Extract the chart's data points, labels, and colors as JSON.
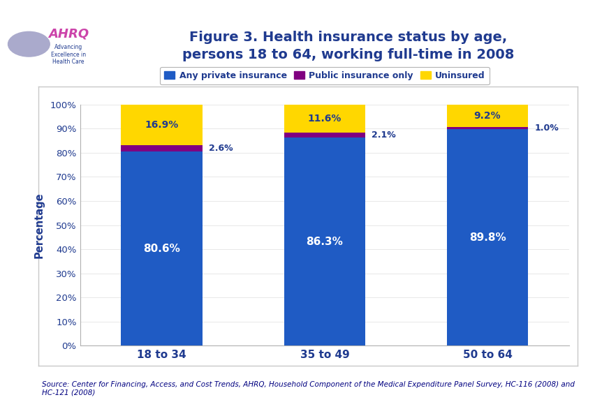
{
  "title": "Figure 3. Health insurance status by age,\npersons 18 to 64, working full-time in 2008",
  "categories": [
    "18 to 34",
    "35 to 49",
    "50 to 64"
  ],
  "series": {
    "Any private insurance": [
      80.6,
      86.3,
      89.8
    ],
    "Public insurance only": [
      2.6,
      2.1,
      1.0
    ],
    "Uninsured": [
      16.9,
      11.6,
      9.2
    ]
  },
  "colors": {
    "Any private insurance": "#1F5BC4",
    "Public insurance only": "#800080",
    "Uninsured": "#FFD700"
  },
  "bar_labels": {
    "Any private insurance": [
      "80.6%",
      "86.3%",
      "89.8%"
    ],
    "Public insurance only": [
      "2.6%",
      "2.1%",
      "1.0%"
    ],
    "Uninsured": [
      "16.9%",
      "11.6%",
      "9.2%"
    ]
  },
  "ylabel": "Percentage",
  "ylim": [
    0,
    100
  ],
  "yticks": [
    0,
    10,
    20,
    30,
    40,
    50,
    60,
    70,
    80,
    90,
    100
  ],
  "ytick_labels": [
    "0%",
    "10%",
    "20%",
    "30%",
    "40%",
    "50%",
    "60%",
    "70%",
    "80%",
    "90%",
    "100%"
  ],
  "legend_labels": [
    "Any private insurance",
    "Public insurance only",
    "Uninsured"
  ],
  "source_text": "Source: Center for Financing, Access, and Cost Trends, AHRQ, Household Component of the Medical Expenditure Panel Survey, HC-116 (2008) and\nHC-121 (2008)",
  "title_color": "#1F3A8F",
  "axis_label_color": "#1F3A8F",
  "tick_label_color": "#1F3A8F",
  "bar_label_white": "#FFFFFF",
  "bar_label_dark": "#1F3A8F",
  "source_color": "#000080",
  "background_color": "#FFFFFF",
  "plot_bg": "#FFFFFF",
  "separator_color": "#00008B",
  "panel_border_color": "#C8C8C8",
  "header_bg": "#FFFFFF",
  "logo_bg": "#1565C0",
  "logo_text_color": "#FFFFFF",
  "logo_text": "AHRQ",
  "logo_subtext": "Advancing\nExcellence in\nHealth Care"
}
